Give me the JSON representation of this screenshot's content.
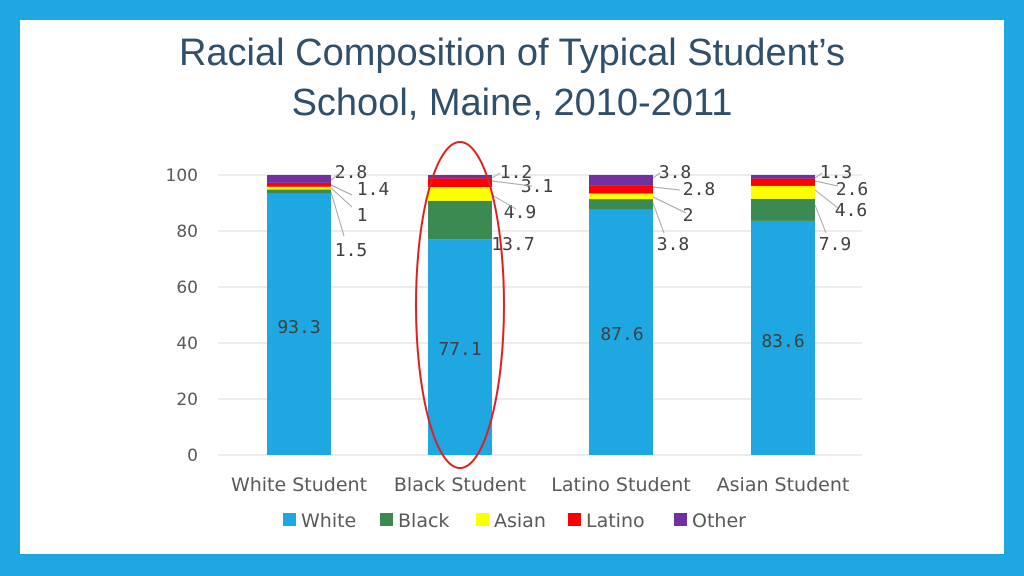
{
  "title_line1": "Racial Composition of Typical Student’s",
  "title_line2": "School, Maine, 2010-2011",
  "chart_data": {
    "type": "bar",
    "stacked": true,
    "title": "Racial Composition of Typical Student’s School, Maine, 2010-2011",
    "categories": [
      "White Student",
      "Black Student",
      "Latino Student",
      "Asian Student"
    ],
    "series": [
      {
        "name": "White",
        "color": "#1ea7e1",
        "values": [
          93.3,
          77.1,
          87.6,
          83.6
        ]
      },
      {
        "name": "Black",
        "color": "#3a8a52",
        "values": [
          1.5,
          13.7,
          3.8,
          7.9
        ]
      },
      {
        "name": "Asian",
        "color": "#ffff00",
        "values": [
          1,
          4.9,
          2,
          4.6
        ]
      },
      {
        "name": "Latino",
        "color": "#ff0000",
        "values": [
          1.4,
          3.1,
          2.8,
          2.6
        ]
      },
      {
        "name": "Other",
        "color": "#7030a0",
        "values": [
          2.8,
          1.2,
          3.8,
          1.3
        ]
      }
    ],
    "yticks": [
      "0",
      "20",
      "40",
      "60",
      "80",
      "100"
    ],
    "ylim": [
      0,
      100
    ],
    "grid": true,
    "legend_position": "bottom",
    "annotation": "red ellipse highlighting Black Student bar"
  }
}
